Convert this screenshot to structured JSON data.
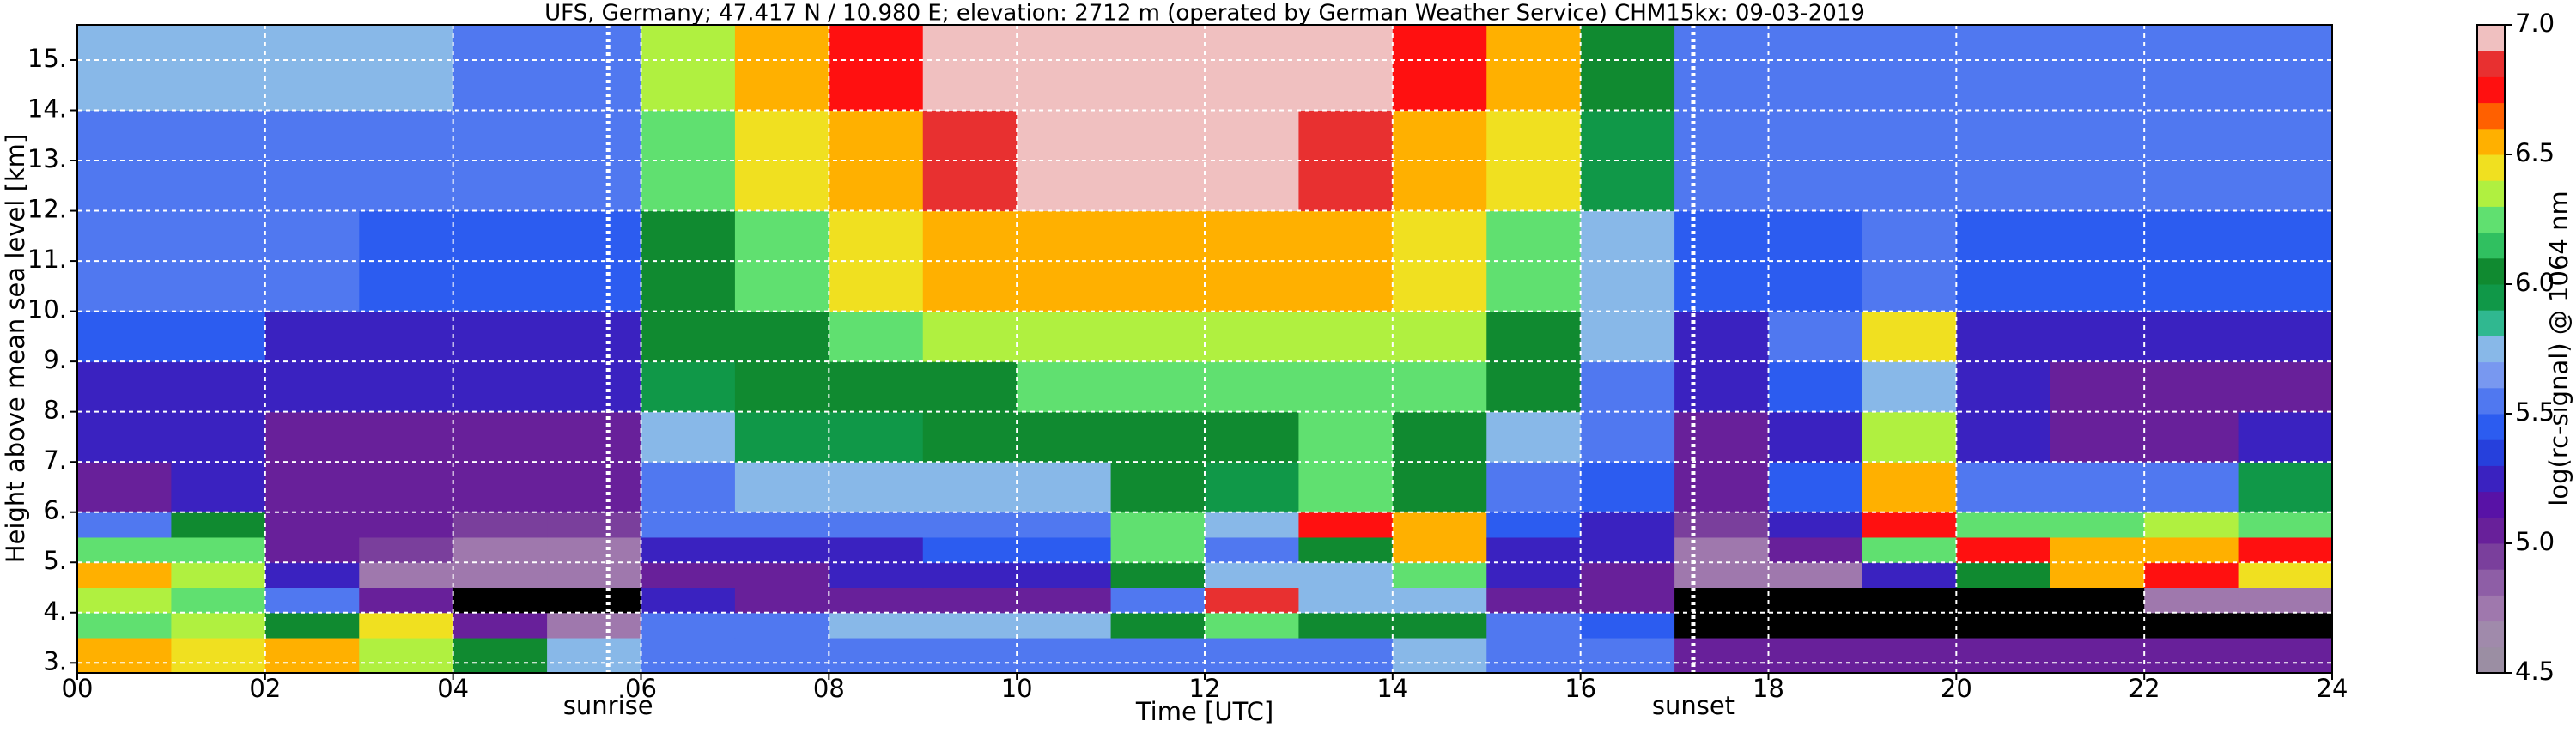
{
  "chart_data": {
    "type": "heatmap",
    "title": "UFS, Germany; 47.417 N / 10.980 E; elevation: 2712 m  (operated by German Weather Service)    CHM15kx: 09-03-2019",
    "xlabel": "Time [UTC]",
    "ylabel": "Height above mean sea level [km]",
    "xlim": [
      0,
      24
    ],
    "ylim": [
      2.8,
      15.7
    ],
    "xticks": [
      {
        "value": 0,
        "label": "00"
      },
      {
        "value": 2,
        "label": "02"
      },
      {
        "value": 4,
        "label": "04"
      },
      {
        "value": 6,
        "label": "06"
      },
      {
        "value": 8,
        "label": "08"
      },
      {
        "value": 10,
        "label": "10"
      },
      {
        "value": 12,
        "label": "12"
      },
      {
        "value": 14,
        "label": "14"
      },
      {
        "value": 16,
        "label": "16"
      },
      {
        "value": 18,
        "label": "18"
      },
      {
        "value": 20,
        "label": "20"
      },
      {
        "value": 22,
        "label": "22"
      },
      {
        "value": 24,
        "label": "24"
      }
    ],
    "yticks": [
      {
        "value": 3,
        "label": "3."
      },
      {
        "value": 4,
        "label": "4."
      },
      {
        "value": 5,
        "label": "5."
      },
      {
        "value": 6,
        "label": "6."
      },
      {
        "value": 7,
        "label": "7."
      },
      {
        "value": 8,
        "label": "8."
      },
      {
        "value": 9,
        "label": "9."
      },
      {
        "value": 10,
        "label": "10."
      },
      {
        "value": 11,
        "label": "11."
      },
      {
        "value": 12,
        "label": "12."
      },
      {
        "value": 13,
        "label": "13."
      },
      {
        "value": 14,
        "label": "14."
      },
      {
        "value": 15,
        "label": "15."
      }
    ],
    "grid": true,
    "grid_color": "#ffffff",
    "xbins": [
      0,
      1,
      2,
      3,
      4,
      5,
      6,
      7,
      8,
      9,
      10,
      11,
      12,
      13,
      14,
      15,
      16,
      17,
      18,
      19,
      20,
      21,
      22,
      23,
      24
    ],
    "ybins": [
      2.8,
      3.5,
      4,
      4.5,
      5,
      5.5,
      6,
      7,
      8,
      9,
      10,
      12,
      14,
      15.7
    ],
    "z": [
      [
        6.5,
        6.4,
        6.5,
        6.3,
        6.0,
        5.8,
        5.5,
        5.5,
        5.5,
        5.5,
        5.5,
        5.6,
        5.6,
        5.6,
        5.8,
        5.5,
        5.5,
        5.0,
        5.0,
        5.0,
        5.0,
        5.0,
        5.0,
        5.0
      ],
      [
        6.2,
        6.3,
        6.0,
        6.4,
        5.0,
        4.7,
        5.6,
        5.6,
        5.7,
        5.8,
        5.7,
        6.0,
        6.2,
        6.0,
        6.0,
        5.5,
        5.4,
        4.4,
        4.4,
        4.4,
        4.4,
        4.4,
        4.4,
        4.4
      ],
      [
        6.3,
        6.2,
        5.5,
        5.0,
        4.4,
        4.4,
        5.2,
        5.0,
        5.0,
        5.0,
        5.1,
        5.6,
        6.8,
        5.8,
        5.8,
        5.0,
        5.0,
        4.4,
        4.4,
        4.4,
        4.4,
        4.4,
        4.7,
        4.7
      ],
      [
        6.5,
        6.3,
        5.2,
        4.8,
        4.7,
        4.7,
        5.1,
        5.1,
        5.2,
        5.2,
        5.2,
        6.0,
        5.8,
        5.8,
        6.2,
        5.2,
        5.1,
        4.7,
        4.8,
        5.2,
        6.0,
        6.5,
        6.7,
        6.4
      ],
      [
        6.2,
        6.2,
        5.0,
        4.9,
        4.8,
        4.8,
        5.3,
        5.3,
        5.3,
        5.4,
        5.4,
        6.2,
        5.6,
        6.0,
        6.5,
        5.3,
        5.2,
        4.8,
        5.0,
        6.2,
        6.7,
        6.5,
        6.6,
        6.7
      ],
      [
        5.6,
        6.0,
        5.0,
        5.0,
        4.9,
        4.9,
        5.5,
        5.5,
        5.5,
        5.6,
        5.6,
        6.2,
        5.7,
        6.7,
        6.5,
        5.4,
        5.3,
        4.9,
        5.2,
        6.7,
        6.2,
        6.2,
        6.3,
        6.2
      ],
      [
        5.1,
        5.2,
        5.1,
        5.1,
        5.0,
        5.0,
        5.6,
        5.7,
        5.7,
        5.8,
        5.8,
        6.0,
        5.9,
        6.2,
        6.0,
        5.6,
        5.4,
        5.0,
        5.4,
        6.6,
        5.6,
        5.5,
        5.6,
        5.9
      ],
      [
        5.2,
        5.2,
        5.1,
        5.1,
        5.1,
        5.1,
        5.8,
        5.9,
        5.9,
        6.0,
        6.0,
        6.1,
        6.0,
        6.2,
        6.1,
        5.8,
        5.5,
        5.1,
        5.3,
        6.3,
        5.2,
        5.1,
        5.1,
        5.2
      ],
      [
        5.3,
        5.3,
        5.2,
        5.2,
        5.2,
        5.2,
        5.9,
        6.0,
        6.1,
        6.1,
        6.2,
        6.2,
        6.2,
        6.2,
        6.2,
        6.0,
        5.6,
        5.2,
        5.4,
        5.8,
        5.2,
        5.1,
        5.1,
        5.1
      ],
      [
        5.4,
        5.4,
        5.3,
        5.3,
        5.3,
        5.3,
        6.0,
        6.1,
        6.2,
        6.3,
        6.3,
        6.3,
        6.3,
        6.3,
        6.3,
        6.1,
        5.7,
        5.3,
        5.5,
        6.4,
        5.3,
        5.2,
        5.2,
        5.2
      ],
      [
        5.5,
        5.5,
        5.5,
        5.4,
        5.4,
        5.4,
        6.1,
        6.2,
        6.4,
        6.5,
        6.5,
        6.5,
        6.5,
        6.5,
        6.4,
        6.2,
        5.8,
        5.4,
        5.4,
        5.5,
        5.4,
        5.4,
        5.4,
        5.4
      ],
      [
        5.6,
        5.6,
        5.6,
        5.6,
        5.5,
        5.5,
        6.2,
        6.4,
        6.6,
        6.8,
        6.9,
        6.9,
        6.9,
        6.8,
        6.6,
        6.4,
        5.9,
        5.5,
        5.5,
        5.5,
        5.5,
        5.5,
        5.5,
        5.5
      ],
      [
        5.7,
        5.7,
        5.7,
        5.7,
        5.6,
        5.6,
        6.3,
        6.5,
        6.7,
        6.9,
        7.0,
        7.0,
        7.0,
        6.9,
        6.7,
        6.5,
        6.0,
        5.6,
        5.6,
        5.6,
        5.6,
        5.6,
        5.6,
        5.6
      ]
    ],
    "under_color": "#000000",
    "annotations": [
      {
        "text": "sunrise",
        "x": 5.65
      },
      {
        "text": "sunset",
        "x": 17.2
      }
    ],
    "colorbar": {
      "label": "log(rc-signal) @ 1064 nm",
      "lim": [
        4.5,
        7.0
      ],
      "ticks": [
        4.5,
        {
          "value": 5.0,
          "label": "5.0"
        },
        5.5,
        {
          "value": 6.0,
          "label": "6.0"
        },
        6.5,
        {
          "value": 7.0,
          "label": "7.0"
        }
      ],
      "colors": [
        "#9b8ea3",
        "#a08aab",
        "#9f78ad",
        "#8e5ea6",
        "#7a3f9c",
        "#68209a",
        "#5812a6",
        "#3a22c0",
        "#2640dc",
        "#2c5cf0",
        "#5078f0",
        "#7898f0",
        "#88b8e8",
        "#30b890",
        "#109848",
        "#108a30",
        "#30c060",
        "#60e070",
        "#b0f040",
        "#f0e020",
        "#ffb000",
        "#ff6000",
        "#ff1010",
        "#e83030",
        "#f0c0c0"
      ]
    }
  }
}
